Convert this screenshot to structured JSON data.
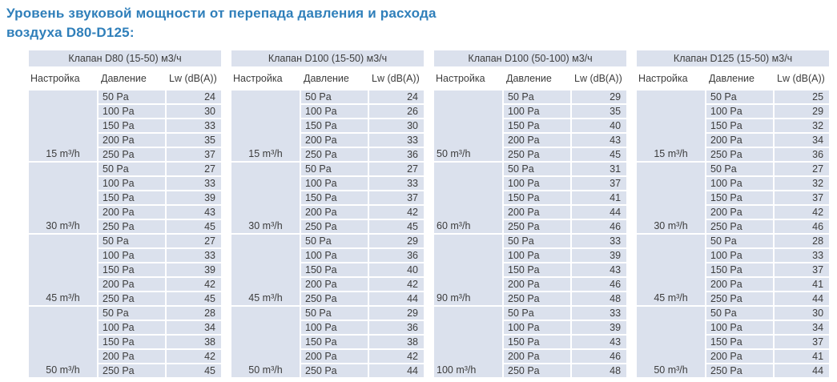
{
  "page_title": {
    "line1": "Уровень звуковой мощности от перепада давления и расхода",
    "line2": "воздуха D80-D125:"
  },
  "columns": {
    "setting": "Настройка",
    "pressure": "Давление",
    "lw": "Lw (dB(A))"
  },
  "tables": [
    {
      "title": "Клапан D80 (15-50) м3/ч",
      "groups": [
        {
          "flow": "15 m³/h",
          "rows": [
            [
              "50 Pa",
              24
            ],
            [
              "100 Pa",
              30
            ],
            [
              "150 Pa",
              33
            ],
            [
              "200 Pa",
              35
            ],
            [
              "250 Pa",
              37
            ]
          ]
        },
        {
          "flow": "30 m³/h",
          "rows": [
            [
              "50 Pa",
              27
            ],
            [
              "100 Pa",
              33
            ],
            [
              "150 Pa",
              39
            ],
            [
              "200 Pa",
              43
            ],
            [
              "250 Pa",
              45
            ]
          ]
        },
        {
          "flow": "45 m³/h",
          "rows": [
            [
              "50 Pa",
              27
            ],
            [
              "100 Pa",
              33
            ],
            [
              "150 Pa",
              39
            ],
            [
              "200 Pa",
              42
            ],
            [
              "250 Pa",
              45
            ]
          ]
        },
        {
          "flow": "50 m³/h",
          "rows": [
            [
              "50 Pa",
              28
            ],
            [
              "100 Pa",
              34
            ],
            [
              "150 Pa",
              38
            ],
            [
              "200 Pa",
              42
            ],
            [
              "250 Pa",
              45
            ]
          ]
        }
      ]
    },
    {
      "title": "Клапан D100 (15-50) м3/ч",
      "groups": [
        {
          "flow": "15 m³/h",
          "rows": [
            [
              "50 Pa",
              24
            ],
            [
              "100 Pa",
              26
            ],
            [
              "150 Pa",
              30
            ],
            [
              "200 Pa",
              33
            ],
            [
              "250 Pa",
              36
            ]
          ]
        },
        {
          "flow": "30 m³/h",
          "rows": [
            [
              "50 Pa",
              27
            ],
            [
              "100 Pa",
              33
            ],
            [
              "150 Pa",
              37
            ],
            [
              "200 Pa",
              42
            ],
            [
              "250 Pa",
              45
            ]
          ]
        },
        {
          "flow": "45 m³/h",
          "rows": [
            [
              "50 Pa",
              29
            ],
            [
              "100 Pa",
              36
            ],
            [
              "150 Pa",
              40
            ],
            [
              "200 Pa",
              42
            ],
            [
              "250 Pa",
              44
            ]
          ]
        },
        {
          "flow": "50 m³/h",
          "rows": [
            [
              "50 Pa",
              29
            ],
            [
              "100 Pa",
              36
            ],
            [
              "150 Pa",
              38
            ],
            [
              "200 Pa",
              42
            ],
            [
              "250 Pa",
              44
            ]
          ]
        }
      ]
    },
    {
      "title": "Клапан D100 (50-100) м3/ч",
      "groups": [
        {
          "flow": "50 m³/h",
          "rows": [
            [
              "50 Pa",
              29
            ],
            [
              "100 Pa",
              35
            ],
            [
              "150 Pa",
              40
            ],
            [
              "200 Pa",
              43
            ],
            [
              "250 Pa",
              45
            ]
          ]
        },
        {
          "flow": "60 m³/h",
          "rows": [
            [
              "50 Pa",
              31
            ],
            [
              "100 Pa",
              37
            ],
            [
              "150 Pa",
              41
            ],
            [
              "200 Pa",
              44
            ],
            [
              "250 Pa",
              46
            ]
          ]
        },
        {
          "flow": "90 m³/h",
          "rows": [
            [
              "50 Pa",
              33
            ],
            [
              "100 Pa",
              39
            ],
            [
              "150 Pa",
              43
            ],
            [
              "200 Pa",
              46
            ],
            [
              "250 Pa",
              48
            ]
          ]
        },
        {
          "flow": "100 m³/h",
          "rows": [
            [
              "50 Pa",
              33
            ],
            [
              "100 Pa",
              39
            ],
            [
              "150 Pa",
              43
            ],
            [
              "200 Pa",
              46
            ],
            [
              "250 Pa",
              48
            ]
          ]
        }
      ]
    },
    {
      "title": "Клапан D125 (15-50) м3/ч",
      "groups": [
        {
          "flow": "15 m³/h",
          "rows": [
            [
              "50 Pa",
              25
            ],
            [
              "100 Pa",
              29
            ],
            [
              "150 Pa",
              32
            ],
            [
              "200 Pa",
              34
            ],
            [
              "250 Pa",
              36
            ]
          ]
        },
        {
          "flow": "30 m³/h",
          "rows": [
            [
              "50 Pa",
              27
            ],
            [
              "100 Pa",
              32
            ],
            [
              "150 Pa",
              37
            ],
            [
              "200 Pa",
              42
            ],
            [
              "250 Pa",
              46
            ]
          ]
        },
        {
          "flow": "45 m³/h",
          "rows": [
            [
              "50 Pa",
              28
            ],
            [
              "100 Pa",
              33
            ],
            [
              "150 Pa",
              37
            ],
            [
              "200 Pa",
              41
            ],
            [
              "250 Pa",
              44
            ]
          ]
        },
        {
          "flow": "50 m³/h",
          "rows": [
            [
              "50 Pa",
              30
            ],
            [
              "100 Pa",
              34
            ],
            [
              "150 Pa",
              37
            ],
            [
              "200 Pa",
              41
            ],
            [
              "250 Pa",
              44
            ]
          ]
        }
      ]
    }
  ],
  "colors": {
    "accent": "#2f7fba",
    "row-bg": "#dbe1ed",
    "text": "#3c3c3c"
  }
}
